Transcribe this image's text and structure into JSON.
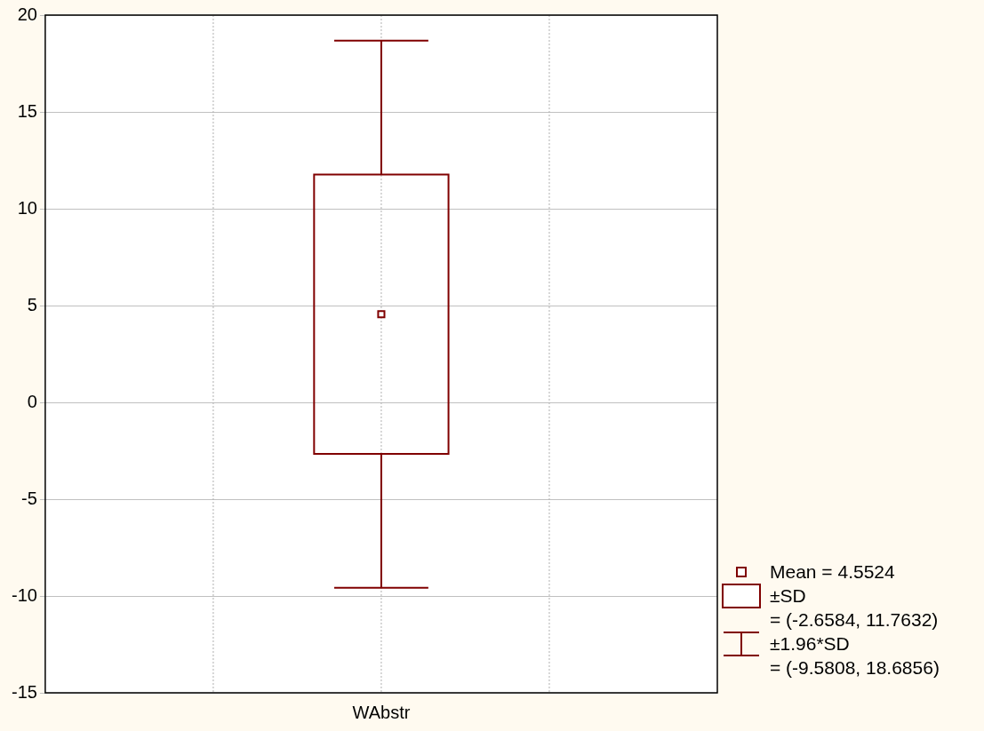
{
  "chart_data": {
    "type": "box",
    "categories": [
      "WAbstr"
    ],
    "color": "#800000",
    "boxes": [
      {
        "low": -9.5808,
        "q1": -2.6584,
        "q3": 11.7632,
        "high": 18.6856,
        "mean": 4.5524
      }
    ],
    "ylim": [
      -15,
      20
    ],
    "yticks": [
      -15,
      -10,
      -5,
      0,
      5,
      10,
      15,
      20
    ],
    "grid": true,
    "legend": false,
    "marker": "square",
    "annotations": [
      "Mean = 4.5524",
      "±SD",
      "= (-2.6584, 11.7632)",
      "±1.96*SD",
      "= (-9.5808, 18.6856)"
    ]
  }
}
